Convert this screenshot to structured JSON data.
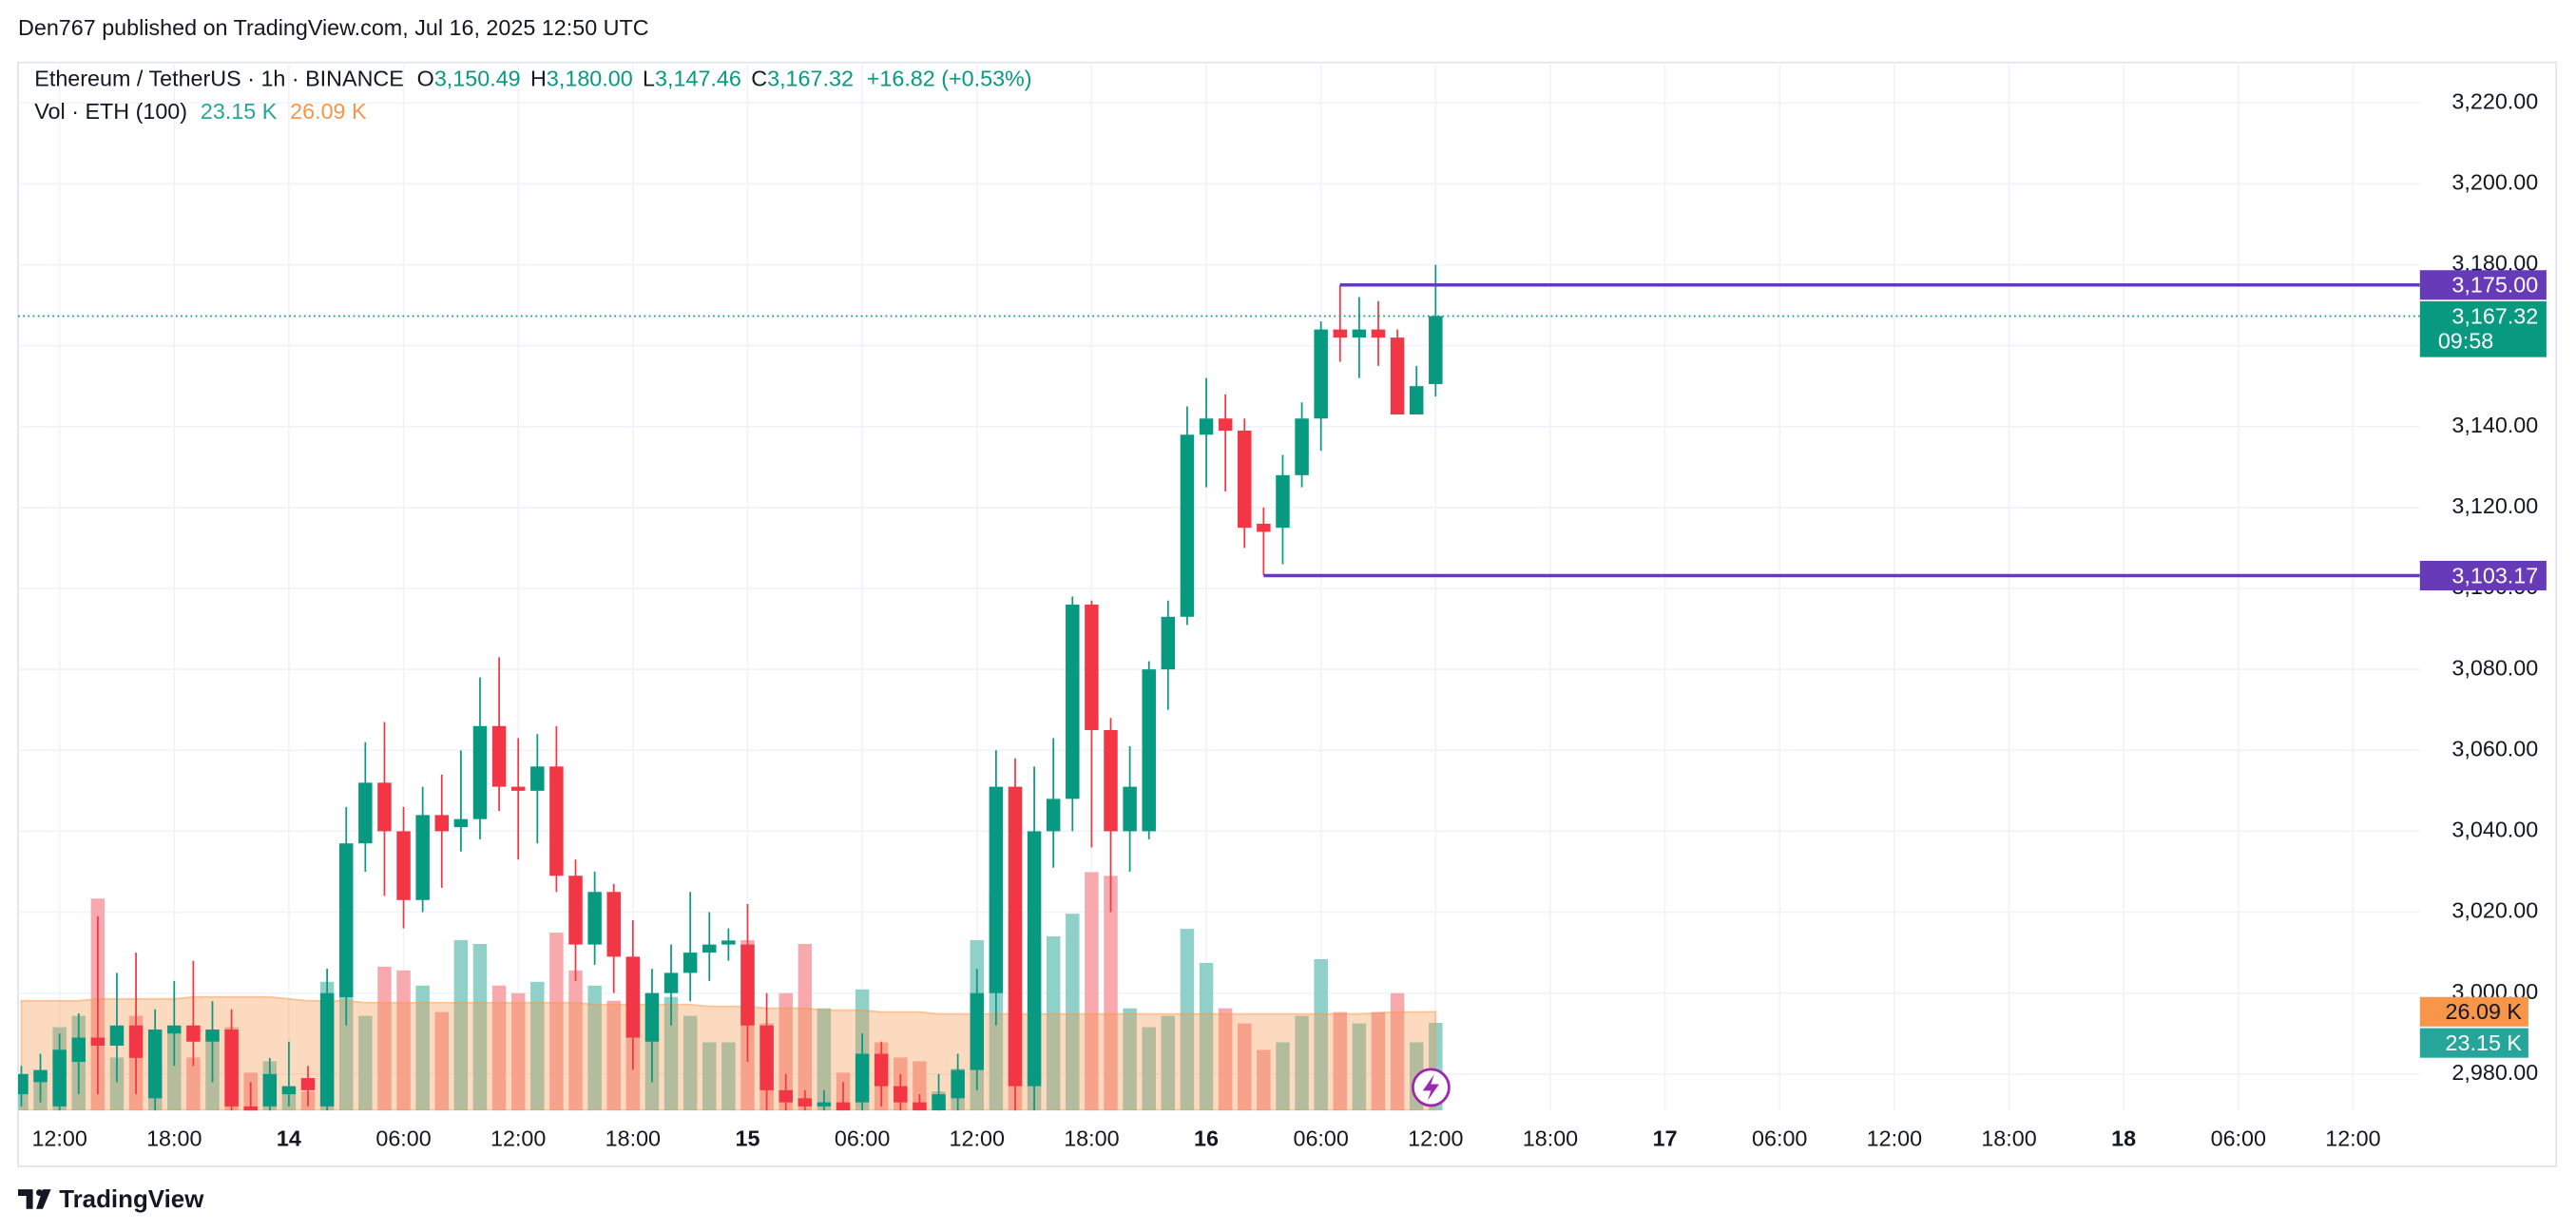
{
  "header": "Den767 published on TradingView.com, Jul 16, 2025 12:50 UTC",
  "footer": "TradingView",
  "chart_data": {
    "type": "candlestick",
    "symbol": "Ethereum / TetherUS · 1h · BINANCE",
    "ohlc": [
      {
        "key": "O",
        "label": "3,150.49"
      },
      {
        "key": "H",
        "label": "3,180.00"
      },
      {
        "key": "L",
        "label": "3,147.46"
      },
      {
        "key": "C",
        "label": "3,167.32"
      }
    ],
    "change": "+16.82 (+0.53%)",
    "up_color": "#089981",
    "down_color": "#f23645",
    "open": [
      2975,
      2978,
      2972,
      2983,
      2989,
      2987,
      2992,
      2974,
      2990,
      2992,
      2988,
      2991,
      2972,
      2972,
      2975,
      2979,
      2972,
      2999,
      3037,
      3052,
      3040,
      3023,
      3044,
      3041,
      3043,
      3066,
      3051,
      3050,
      3056,
      3029,
      3012,
      3025,
      3009,
      2988,
      3000,
      3005,
      3010,
      3012,
      3012,
      2992,
      2976,
      2974,
      2972,
      2973,
      2973,
      2985,
      2977,
      2973,
      2971,
      2974,
      2981,
      3000,
      3051,
      2977,
      3040,
      3048,
      3096,
      3065,
      3040,
      3040,
      3080,
      3093,
      3138,
      3142,
      3139,
      3116,
      3115,
      3128,
      3142,
      3164,
      3162,
      3164,
      3162,
      3143,
      3150.49
    ],
    "high": [
      2982,
      2985,
      2990,
      2995,
      3019,
      3005,
      3010,
      2996,
      3003,
      3008,
      2998,
      2996,
      2978,
      2984,
      2988,
      2982,
      3006,
      3046,
      3062,
      3067,
      3046,
      3051,
      3054,
      3060,
      3078,
      3083,
      3063,
      3064,
      3066,
      3033,
      3030,
      3027,
      3018,
      3006,
      3012,
      3025,
      3020,
      3016,
      3022,
      3000,
      2980,
      2976,
      2976,
      2978,
      2990,
      2988,
      2980,
      2975,
      2980,
      2985,
      3006,
      3060,
      3058,
      3056,
      3063,
      3098,
      3097,
      3068,
      3061,
      3082,
      3097,
      3145,
      3152,
      3148,
      3142,
      3120,
      3133,
      3146,
      3166,
      3175,
      3172,
      3171,
      3164,
      3155,
      3180
    ],
    "low": [
      2972,
      2973,
      2970,
      2975,
      2975,
      2978,
      2975,
      2970,
      2982,
      2982,
      2978,
      2970,
      2968,
      2970,
      2972,
      2972,
      2970,
      2992,
      3030,
      3024,
      3016,
      3020,
      3026,
      3035,
      3038,
      3045,
      3033,
      3037,
      3025,
      3003,
      3007,
      3000,
      2981,
      2978,
      2992,
      2998,
      3003,
      3008,
      2983,
      2970,
      2970,
      2970,
      2970,
      2970,
      2970,
      2972,
      2970,
      2970,
      2970,
      2970,
      2976,
      2992,
      2970,
      2970,
      3031,
      3040,
      3036,
      3020,
      3030,
      3038,
      3070,
      3091,
      3125,
      3124,
      3110,
      3103.17,
      3106,
      3125,
      3134,
      3156,
      3152,
      3155,
      3143,
      3143,
      3147.46
    ],
    "close": [
      2980,
      2981,
      2986,
      2989,
      2987,
      2992,
      2984,
      2991,
      2992,
      2988,
      2991,
      2972,
      2970,
      2980,
      2977,
      2976,
      3000,
      3037,
      3052,
      3040,
      3023,
      3044,
      3040,
      3043,
      3066,
      3051,
      3050,
      3056,
      3029,
      3012,
      3025,
      3009,
      2989,
      3000,
      3005,
      3010,
      3012,
      3013,
      2992,
      2976,
      2973,
      2972,
      2973,
      2971,
      2985,
      2977,
      2973,
      2971,
      2975,
      2981,
      3000,
      3051,
      2977,
      3040,
      3048,
      3096,
      3065,
      3040,
      3051,
      3080,
      3093,
      3138,
      3142,
      3139,
      3115,
      3114,
      3128,
      3142,
      3164,
      3162,
      3164,
      3162,
      3143,
      3150,
      3167.32
    ],
    "ylim": [
      2971,
      3230
    ],
    "yticks": [
      {
        "value": 2980,
        "label": "2,980.00"
      },
      {
        "value": 3000,
        "label": "3,000.00"
      },
      {
        "value": 3020,
        "label": "3,020.00"
      },
      {
        "value": 3040,
        "label": "3,040.00"
      },
      {
        "value": 3060,
        "label": "3,060.00"
      },
      {
        "value": 3080,
        "label": "3,080.00"
      },
      {
        "value": 3100,
        "label": "3,100.00"
      },
      {
        "value": 3120,
        "label": "3,120.00"
      },
      {
        "value": 3140,
        "label": "3,140.00"
      },
      {
        "value": 3160,
        "label": "3,160.00"
      },
      {
        "value": 3180,
        "label": "3,180.00"
      },
      {
        "value": 3200,
        "label": "3,200.00"
      },
      {
        "value": 3220,
        "label": "3,220.00"
      }
    ],
    "xlim": [
      -0.17,
      125.5
    ],
    "xticks": [
      {
        "value": 2,
        "label": "12:00"
      },
      {
        "value": 8,
        "label": "18:00"
      },
      {
        "value": 14,
        "label": "14"
      },
      {
        "value": 20,
        "label": "06:00"
      },
      {
        "value": 26,
        "label": "12:00"
      },
      {
        "value": 32,
        "label": "18:00"
      },
      {
        "value": 38,
        "label": "15"
      },
      {
        "value": 44,
        "label": "06:00"
      },
      {
        "value": 50,
        "label": "12:00"
      },
      {
        "value": 56,
        "label": "18:00"
      },
      {
        "value": 62,
        "label": "16"
      },
      {
        "value": 68,
        "label": "06:00"
      },
      {
        "value": 74,
        "label": "12:00"
      },
      {
        "value": 80,
        "label": "18:00"
      },
      {
        "value": 86,
        "label": "17"
      },
      {
        "value": 92,
        "label": "06:00"
      },
      {
        "value": 98,
        "label": "12:00"
      },
      {
        "value": 104,
        "label": "18:00"
      },
      {
        "value": 110,
        "label": "18"
      },
      {
        "value": 116,
        "label": "06:00"
      },
      {
        "value": 122,
        "label": "12:00"
      }
    ],
    "grid": true,
    "levels": [
      {
        "value": 3175,
        "label": "3,175.00",
        "x": 69,
        "color": "#673ab7"
      },
      {
        "value": 3103.17,
        "label": "3,103.17",
        "x": 65,
        "color": "#673ab7"
      }
    ],
    "current_price": {
      "value": 3167.32,
      "label": "3,167.32",
      "countdown": "09:58",
      "color": "#089981"
    },
    "volume": {
      "title": "Vol · ETH (100)",
      "ylim": [
        0,
        277
      ],
      "up_color": "#8fd1c8",
      "down_color": "#f7a9ae",
      "ma_color": "#f7954a",
      "values": [
        7,
        10,
        22,
        25,
        56,
        14,
        25,
        12,
        22,
        14,
        20,
        22,
        10,
        13,
        6,
        5,
        34,
        33,
        25,
        38,
        37,
        33,
        26,
        45,
        44,
        33,
        31,
        34,
        47,
        37,
        33,
        29,
        40,
        31,
        30,
        25,
        18,
        18,
        45,
        23,
        31,
        44,
        27,
        10,
        32,
        18,
        14,
        13,
        5,
        11,
        45,
        58,
        52,
        46,
        46,
        52,
        63,
        62,
        27,
        22,
        25,
        48,
        39,
        27,
        23,
        16,
        18,
        25,
        40,
        26,
        23,
        26,
        31,
        18,
        23.15
      ],
      "ma_values": [
        29,
        29,
        29,
        29,
        29.5,
        29.5,
        29.5,
        29.5,
        29.5,
        30,
        30,
        30,
        30,
        30,
        29.5,
        29,
        29,
        29,
        28.5,
        28.5,
        28.5,
        28.5,
        28.5,
        28.5,
        28.5,
        28.5,
        28.5,
        28.5,
        28.5,
        28.5,
        28,
        28,
        28,
        28,
        28,
        28,
        27.5,
        27.5,
        27.5,
        27,
        27,
        27,
        26.5,
        26.5,
        26.5,
        26,
        26,
        26,
        25.5,
        25.5,
        25.5,
        25.5,
        25.5,
        25.5,
        25.5,
        25.5,
        25.5,
        25.5,
        25.5,
        25.5,
        25.5,
        25.5,
        25.5,
        25.5,
        25.5,
        25.5,
        25.5,
        25.5,
        25.5,
        25.5,
        25.5,
        25.8,
        26,
        26,
        26.09
      ],
      "value_label": "23.15 K",
      "ma_label": "26.09 K"
    }
  }
}
